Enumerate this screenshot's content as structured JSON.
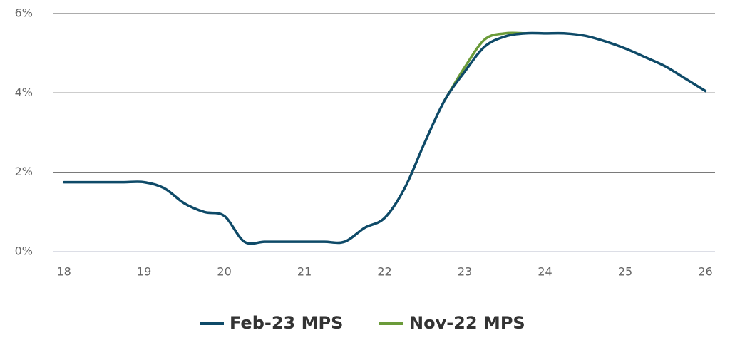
{
  "chart_data": {
    "type": "line",
    "x": [
      18,
      18.25,
      18.5,
      18.75,
      19,
      19.25,
      19.5,
      19.75,
      20,
      20.25,
      20.5,
      20.75,
      21,
      21.25,
      21.5,
      21.75,
      22,
      22.25,
      22.5,
      22.75,
      23,
      23.25,
      23.5,
      23.75,
      24,
      24.25,
      24.5,
      24.75,
      25,
      25.25,
      25.5,
      25.75,
      26
    ],
    "series": [
      {
        "name": "Feb-23 MPS",
        "color": "#0e4a68",
        "values": [
          1.75,
          1.75,
          1.75,
          1.75,
          1.75,
          1.6,
          1.22,
          1.0,
          0.9,
          0.25,
          0.25,
          0.25,
          0.25,
          0.25,
          0.25,
          0.6,
          0.85,
          1.6,
          2.75,
          3.82,
          4.54,
          5.17,
          5.42,
          5.5,
          5.5,
          5.5,
          5.44,
          5.3,
          5.12,
          4.9,
          4.67,
          4.36,
          4.05
        ]
      },
      {
        "name": "Nov-22 MPS",
        "color": "#6b9b3a",
        "values": [
          null,
          null,
          null,
          null,
          null,
          null,
          null,
          null,
          null,
          null,
          null,
          null,
          null,
          null,
          null,
          null,
          null,
          null,
          null,
          3.82,
          4.65,
          5.35,
          5.5,
          5.5,
          null,
          null,
          null,
          null,
          null,
          null,
          null,
          null,
          null
        ]
      }
    ],
    "xlim": [
      17.87,
      26.12
    ],
    "xticks": [
      18,
      19,
      20,
      21,
      22,
      23,
      24,
      25,
      26
    ],
    "ylim": [
      0,
      6
    ],
    "yticks": [
      {
        "value": 0,
        "label": "0%"
      },
      {
        "value": 2,
        "label": "2%"
      },
      {
        "value": 4,
        "label": "4%"
      },
      {
        "value": 6,
        "label": "6%"
      }
    ],
    "grid": true,
    "legend": "bottom"
  }
}
